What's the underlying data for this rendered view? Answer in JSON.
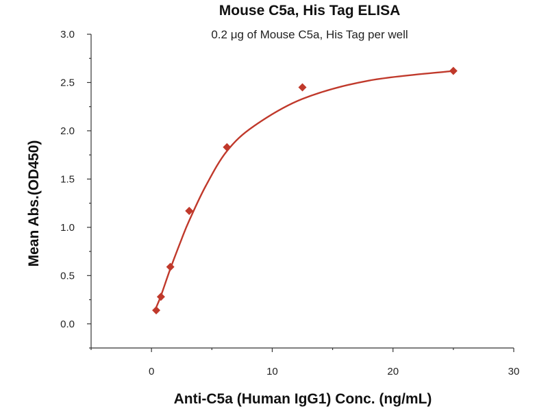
{
  "chart_data": {
    "type": "scatter",
    "title": "Mouse C5a, His Tag ELISA",
    "subtitle": "0.2 μg of Mouse C5a, His Tag per well",
    "xlabel": "Anti-C5a (Human IgG1) Conc. (ng/mL)",
    "ylabel": "Mean Abs.(OD450)",
    "xlim": [
      -5,
      30
    ],
    "ylim": [
      -0.25,
      3.0
    ],
    "xticks": [
      0,
      10,
      20,
      30
    ],
    "yticks": [
      0.0,
      0.5,
      1.0,
      1.5,
      2.0,
      2.5,
      3.0
    ],
    "xtick_labels": [
      "0",
      "10",
      "20",
      "30"
    ],
    "ytick_labels": [
      "0.0",
      "0.5",
      "1.0",
      "1.5",
      "2.0",
      "2.5",
      "3.0"
    ],
    "grid": false,
    "marker": "diamond",
    "color": "#c0392b",
    "series": [
      {
        "x": [
          0.39,
          0.78,
          1.56,
          3.125,
          6.25,
          12.5,
          25
        ],
        "y": [
          0.14,
          0.28,
          0.59,
          1.17,
          1.83,
          2.45,
          2.62
        ]
      }
    ],
    "fit_curve": {
      "type": "saturation",
      "x": [
        0.39,
        0.78,
        1.56,
        2.5,
        3.125,
        4.5,
        6.25,
        8.5,
        12.5,
        18,
        25
      ],
      "y": [
        0.17,
        0.29,
        0.57,
        0.88,
        1.07,
        1.43,
        1.79,
        2.05,
        2.33,
        2.52,
        2.62
      ]
    }
  }
}
